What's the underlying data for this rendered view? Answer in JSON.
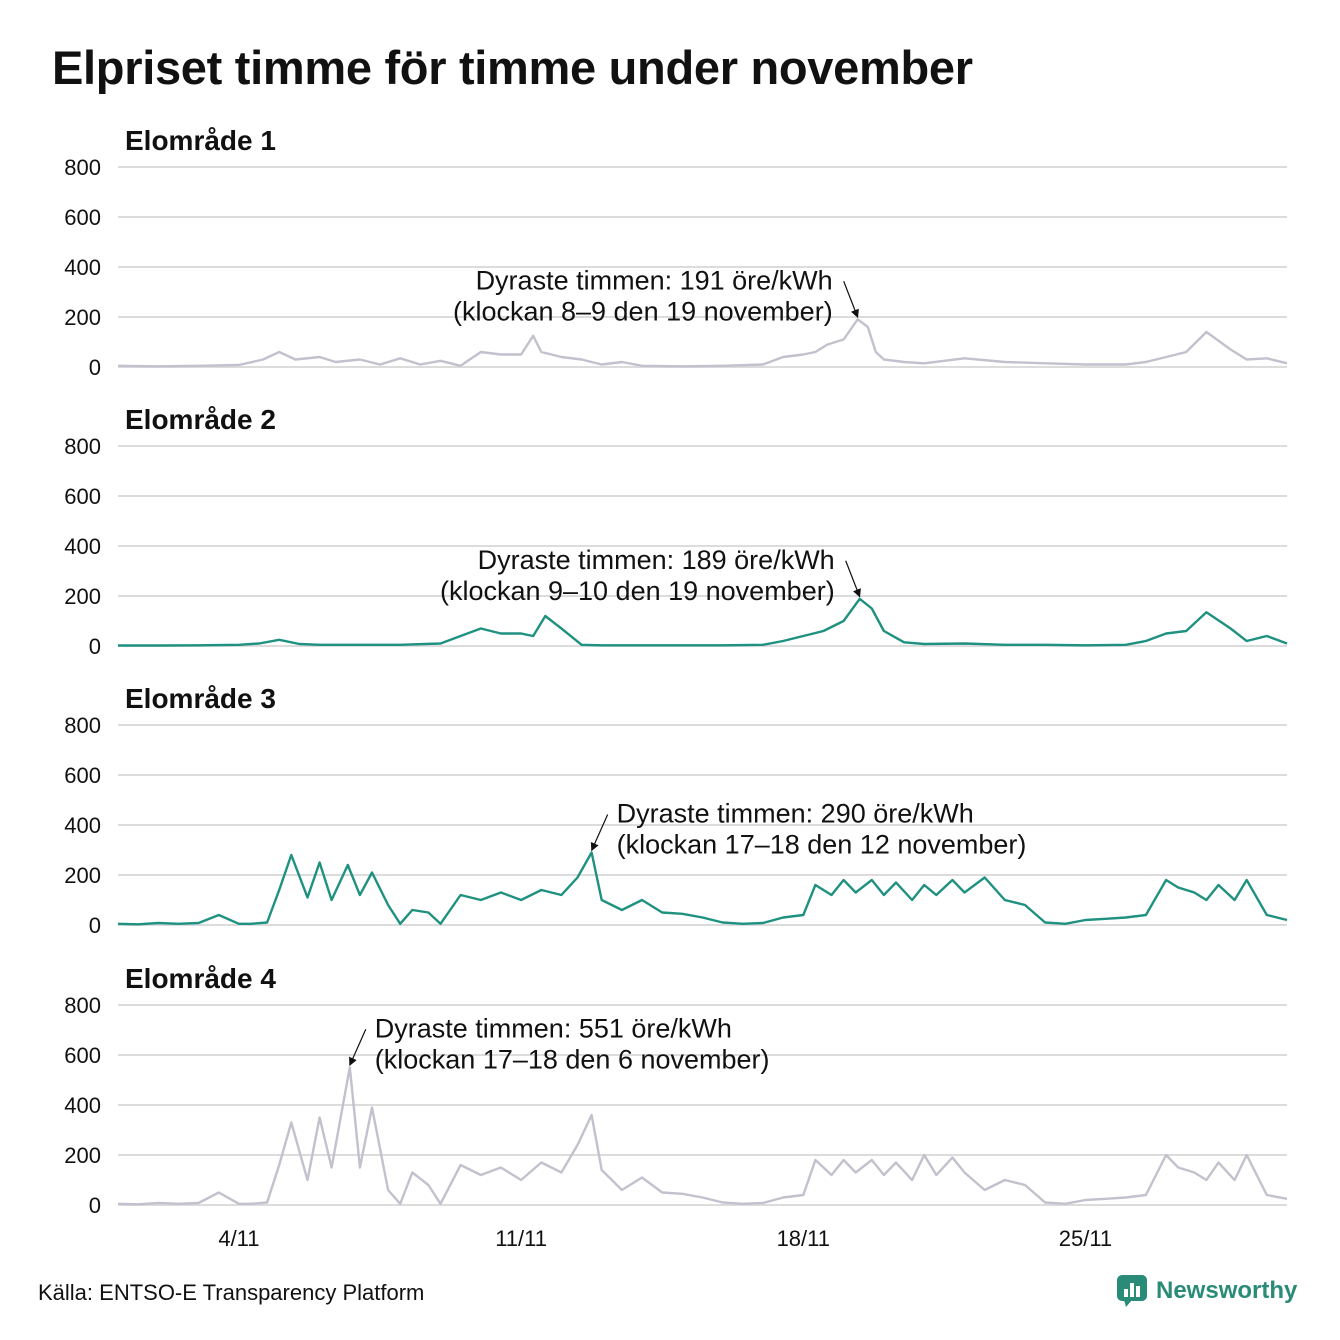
{
  "title": "Elpriset timme för timme under november",
  "source": "Källa: ENTSO-E Transparency Platform",
  "brand": "Newsworthy",
  "colors": {
    "highlight": "#1f9180",
    "muted": "#c2c1cd",
    "grid": "#dcdcdc",
    "brand": "#2a8c78"
  },
  "chart_data": [
    {
      "type": "line",
      "title": "Elområde 1",
      "color": "muted",
      "xlabel": "",
      "ylabel": "",
      "ylim": [
        0,
        800
      ],
      "yticks": [
        0,
        200,
        400,
        600,
        800
      ],
      "x_start_day": 1,
      "x_end_day": 30,
      "xticks": [
        {
          "day": 4,
          "label": "4/11"
        },
        {
          "day": 11,
          "label": "11/11"
        },
        {
          "day": 18,
          "label": "18/11"
        },
        {
          "day": 25,
          "label": "25/11"
        }
      ],
      "max": {
        "day": 19.35,
        "value": 191,
        "line1": "Dyraste timmen: 191 öre/kWh",
        "line2": "(klockan 8–9 den 19 november)"
      },
      "series": [
        {
          "x_day": [
            1,
            2,
            3,
            4,
            4.6,
            5,
            5.4,
            6,
            6.4,
            7,
            7.5,
            8,
            8.5,
            9,
            9.5,
            10,
            10.5,
            11,
            11.3,
            11.5,
            12,
            12.5,
            13,
            13.5,
            14,
            15,
            16,
            17,
            17.5,
            18,
            18.3,
            18.6,
            19,
            19.35,
            19.6,
            19.8,
            20,
            20.5,
            21,
            22,
            23,
            24,
            25,
            26,
            26.5,
            27,
            27.5,
            28,
            28.6,
            29,
            29.5,
            30
          ],
          "values": [
            5,
            3,
            5,
            8,
            30,
            60,
            30,
            40,
            20,
            30,
            10,
            35,
            10,
            25,
            5,
            60,
            50,
            50,
            125,
            60,
            40,
            30,
            10,
            20,
            5,
            3,
            5,
            10,
            40,
            50,
            60,
            90,
            110,
            191,
            160,
            60,
            30,
            20,
            15,
            35,
            20,
            15,
            10,
            10,
            20,
            40,
            60,
            140,
            70,
            30,
            35,
            15
          ]
        }
      ]
    },
    {
      "type": "line",
      "title": "Elområde 2",
      "color": "highlight",
      "xlabel": "",
      "ylabel": "",
      "ylim": [
        0,
        800
      ],
      "yticks": [
        0,
        200,
        400,
        600,
        800
      ],
      "x_start_day": 1,
      "x_end_day": 30,
      "xticks": [
        {
          "day": 4,
          "label": "4/11"
        },
        {
          "day": 11,
          "label": "11/11"
        },
        {
          "day": 18,
          "label": "18/11"
        },
        {
          "day": 25,
          "label": "25/11"
        }
      ],
      "max": {
        "day": 19.4,
        "value": 189,
        "line1": "Dyraste timmen: 189 öre/kWh",
        "line2": "(klockan 9–10 den 19 november)"
      },
      "series": [
        {
          "x_day": [
            1,
            2,
            3,
            4,
            4.5,
            5,
            5.5,
            6,
            7,
            8,
            9,
            9.5,
            10,
            10.5,
            11,
            11.3,
            11.6,
            12,
            12.5,
            13,
            14,
            15,
            16,
            17,
            17.5,
            18,
            18.5,
            19,
            19.4,
            19.7,
            20,
            20.5,
            21,
            22,
            23,
            24,
            25,
            26,
            26.5,
            27,
            27.5,
            28,
            28.6,
            29,
            29.5,
            30
          ],
          "values": [
            2,
            2,
            3,
            5,
            10,
            25,
            8,
            5,
            5,
            5,
            10,
            40,
            70,
            50,
            50,
            40,
            120,
            70,
            5,
            3,
            3,
            3,
            3,
            5,
            20,
            40,
            60,
            100,
            189,
            150,
            60,
            15,
            8,
            10,
            5,
            5,
            3,
            5,
            20,
            50,
            60,
            135,
            70,
            20,
            40,
            10
          ]
        }
      ]
    },
    {
      "type": "line",
      "title": "Elområde 3",
      "color": "highlight",
      "xlabel": "",
      "ylabel": "",
      "ylim": [
        0,
        800
      ],
      "yticks": [
        0,
        200,
        400,
        600,
        800
      ],
      "x_start_day": 1,
      "x_end_day": 30,
      "xticks": [
        {
          "day": 4,
          "label": "4/11"
        },
        {
          "day": 11,
          "label": "11/11"
        },
        {
          "day": 18,
          "label": "18/11"
        },
        {
          "day": 25,
          "label": "25/11"
        }
      ],
      "max": {
        "day": 12.75,
        "value": 290,
        "line1": "Dyraste timmen: 290 öre/kWh",
        "line2": "(klockan 17–18 den 12 november)"
      },
      "series": [
        {
          "x_day": [
            1,
            1.5,
            2,
            2.5,
            3,
            3.5,
            4,
            4.3,
            4.7,
            5,
            5.3,
            5.7,
            6,
            6.3,
            6.7,
            7,
            7.3,
            7.7,
            8,
            8.3,
            8.7,
            9,
            9.5,
            10,
            10.5,
            11,
            11.5,
            12,
            12.4,
            12.75,
            13,
            13.5,
            14,
            14.5,
            15,
            15.5,
            16,
            16.5,
            17,
            17.5,
            18,
            18.3,
            18.7,
            19,
            19.3,
            19.7,
            20,
            20.3,
            20.7,
            21,
            21.3,
            21.7,
            22,
            22.5,
            23,
            23.5,
            24,
            24.5,
            25,
            25.5,
            26,
            26.5,
            27,
            27.3,
            27.7,
            28,
            28.3,
            28.7,
            29,
            29.5,
            30
          ],
          "values": [
            5,
            3,
            8,
            5,
            8,
            40,
            5,
            5,
            10,
            140,
            280,
            110,
            250,
            100,
            240,
            120,
            210,
            80,
            5,
            60,
            50,
            5,
            120,
            100,
            130,
            100,
            140,
            120,
            190,
            290,
            100,
            60,
            100,
            50,
            45,
            30,
            10,
            5,
            8,
            30,
            40,
            160,
            120,
            180,
            130,
            180,
            120,
            170,
            100,
            160,
            120,
            180,
            130,
            190,
            100,
            80,
            10,
            5,
            20,
            25,
            30,
            40,
            180,
            150,
            130,
            100,
            160,
            100,
            180,
            40,
            20
          ]
        }
      ]
    },
    {
      "type": "line",
      "title": "Elområde 4",
      "color": "muted",
      "xlabel": "",
      "ylabel": "",
      "ylim": [
        0,
        800
      ],
      "yticks": [
        0,
        200,
        400,
        600,
        800
      ],
      "x_start_day": 1,
      "x_end_day": 30,
      "xticks": [
        {
          "day": 4,
          "label": "4/11"
        },
        {
          "day": 11,
          "label": "11/11"
        },
        {
          "day": 18,
          "label": "18/11"
        },
        {
          "day": 25,
          "label": "25/11"
        }
      ],
      "max": {
        "day": 6.75,
        "value": 551,
        "line1": "Dyraste timmen: 551 öre/kWh",
        "line2": "(klockan 17–18 den 6 november)"
      },
      "series": [
        {
          "x_day": [
            1,
            1.5,
            2,
            2.5,
            3,
            3.5,
            4,
            4.3,
            4.7,
            5,
            5.3,
            5.7,
            6,
            6.3,
            6.75,
            7,
            7.3,
            7.7,
            8,
            8.3,
            8.7,
            9,
            9.5,
            10,
            10.5,
            11,
            11.5,
            12,
            12.4,
            12.75,
            13,
            13.5,
            14,
            14.5,
            15,
            15.5,
            16,
            16.5,
            17,
            17.5,
            18,
            18.3,
            18.7,
            19,
            19.3,
            19.7,
            20,
            20.3,
            20.7,
            21,
            21.3,
            21.7,
            22,
            22.5,
            23,
            23.5,
            24,
            24.5,
            25,
            25.5,
            26,
            26.5,
            27,
            27.3,
            27.7,
            28,
            28.3,
            28.7,
            29,
            29.5,
            30
          ],
          "values": [
            5,
            3,
            8,
            5,
            8,
            50,
            5,
            5,
            10,
            160,
            330,
            100,
            350,
            150,
            551,
            150,
            390,
            60,
            5,
            130,
            80,
            5,
            160,
            120,
            150,
            100,
            170,
            130,
            240,
            360,
            140,
            60,
            110,
            50,
            45,
            30,
            10,
            5,
            8,
            30,
            40,
            180,
            120,
            180,
            130,
            180,
            120,
            170,
            100,
            200,
            120,
            190,
            130,
            60,
            100,
            80,
            10,
            5,
            20,
            25,
            30,
            40,
            200,
            150,
            130,
            100,
            170,
            100,
            200,
            40,
            25
          ]
        }
      ]
    }
  ]
}
